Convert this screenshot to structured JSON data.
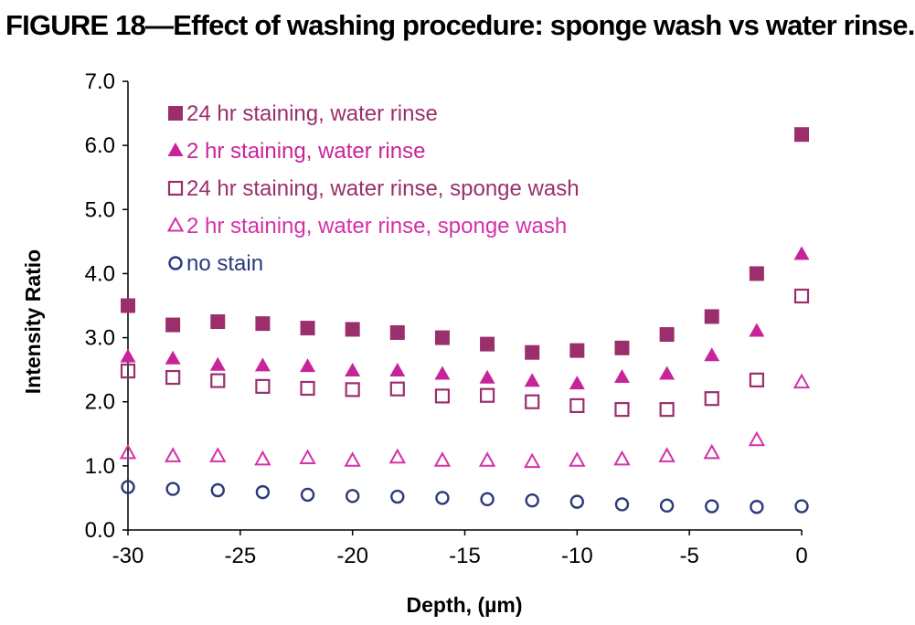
{
  "figure_title": "FIGURE 18—Effect of washing procedure: sponge wash vs water rinse.",
  "chart_data": {
    "type": "scatter",
    "title": "",
    "xlabel": "Depth, (µm)",
    "ylabel": "Intensity Ratio",
    "xlim": [
      -30,
      0
    ],
    "ylim": [
      0.0,
      7.0
    ],
    "x_ticks": [
      "-30",
      "-25",
      "-20",
      "-15",
      "-10",
      "-5",
      "0"
    ],
    "y_ticks": [
      "0.0",
      "1.0",
      "2.0",
      "3.0",
      "4.0",
      "5.0",
      "6.0",
      "7.0"
    ],
    "grid": false,
    "legend_position": "top-left",
    "x": [
      -30,
      -28,
      -26,
      -24,
      -22,
      -20,
      -18,
      -16,
      -14,
      -12,
      -10,
      -8,
      -6,
      -4,
      -2,
      0
    ],
    "series": [
      {
        "name": "24 hr staining, water rinse",
        "marker": "square-filled",
        "color": "#9b2f6b",
        "values": [
          3.5,
          3.2,
          3.25,
          3.22,
          3.15,
          3.13,
          3.08,
          3.0,
          2.9,
          2.77,
          2.8,
          2.84,
          3.05,
          3.33,
          4.0,
          6.17
        ]
      },
      {
        "name": "2 hr staining, water rinse",
        "marker": "triangle-filled",
        "color": "#c8249a",
        "values": [
          2.7,
          2.67,
          2.57,
          2.56,
          2.55,
          2.48,
          2.48,
          2.43,
          2.37,
          2.32,
          2.28,
          2.38,
          2.43,
          2.72,
          3.1,
          4.3
        ]
      },
      {
        "name": "24 hr staining, water rinse, sponge wash",
        "marker": "square-open",
        "color": "#9b2f6b",
        "values": [
          2.48,
          2.38,
          2.33,
          2.24,
          2.21,
          2.19,
          2.2,
          2.09,
          2.1,
          2.0,
          1.94,
          1.88,
          1.88,
          2.05,
          2.34,
          3.65
        ]
      },
      {
        "name": "2 hr staining, water rinse, sponge wash",
        "marker": "triangle-open",
        "color": "#d331a8",
        "values": [
          1.2,
          1.15,
          1.15,
          1.1,
          1.12,
          1.08,
          1.13,
          1.08,
          1.08,
          1.06,
          1.08,
          1.1,
          1.15,
          1.2,
          1.4,
          2.3
        ]
      },
      {
        "name": "no stain",
        "marker": "circle-open",
        "color": "#2b3a7a",
        "values": [
          0.67,
          0.64,
          0.62,
          0.59,
          0.55,
          0.53,
          0.52,
          0.5,
          0.48,
          0.46,
          0.44,
          0.4,
          0.38,
          0.37,
          0.36,
          0.37
        ]
      }
    ]
  }
}
